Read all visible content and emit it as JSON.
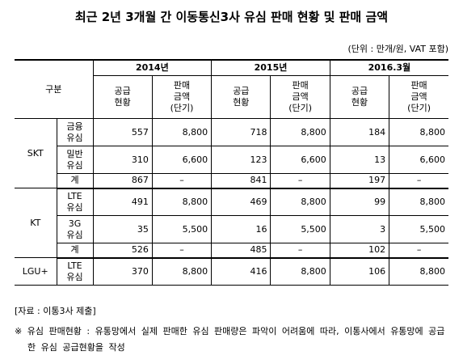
{
  "header": {
    "title": "최근 2년 3개월 간 이동통신3사 유심 판매 현황 및 판매 금액",
    "unit": "(단위 : 만개/원, VAT 포함)"
  },
  "table": {
    "corner": "구분",
    "years": [
      {
        "year": "2014년",
        "supply": "공급\n현황",
        "price": "판매\n금액\n(단기)"
      },
      {
        "year": "2015년",
        "supply": "공급\n현황",
        "price": "판매\n금액\n(단기)"
      },
      {
        "year": "2016.3월",
        "supply": "공급\n현황",
        "price": "판매\n금액\n(단기)"
      }
    ],
    "groups": [
      {
        "company": "SKT",
        "rows": [
          {
            "item": "금융\n유심",
            "cells": [
              "557",
              "8,800",
              "718",
              "8,800",
              "184",
              "8,800"
            ]
          },
          {
            "item": "밀반\n유심",
            "cells": [
              "310",
              "6,600",
              "123",
              "6,600",
              "13",
              "6,600"
            ]
          },
          {
            "item": "계",
            "cells": [
              "867",
              "–",
              "841",
              "–",
              "197",
              "–"
            ]
          }
        ]
      },
      {
        "company": "KT",
        "rows": [
          {
            "item": "LTE\n유심",
            "cells": [
              "491",
              "8,800",
              "469",
              "8,800",
              "99",
              "8,800"
            ]
          },
          {
            "item": "3G\n유심",
            "cells": [
              "35",
              "5,500",
              "16",
              "5,500",
              "3",
              "5,500"
            ]
          },
          {
            "item": "계",
            "cells": [
              "526",
              "–",
              "485",
              "–",
              "102",
              "–"
            ]
          }
        ]
      },
      {
        "company": "LGU+",
        "rows": [
          {
            "item": "LTE\n유심",
            "cells": [
              "370",
              "8,800",
              "416",
              "8,800",
              "106",
              "8,800"
            ]
          }
        ]
      }
    ]
  },
  "footer": {
    "source": "[자료 : 이통3사 제출]",
    "note": "※ 유심 판매현황 : 유통망에서 실제 판매한 유심 판매량은 파악이 어려움에 따라, 이통사에서 유통망에 공급한 유심 공급현황을 작성"
  }
}
